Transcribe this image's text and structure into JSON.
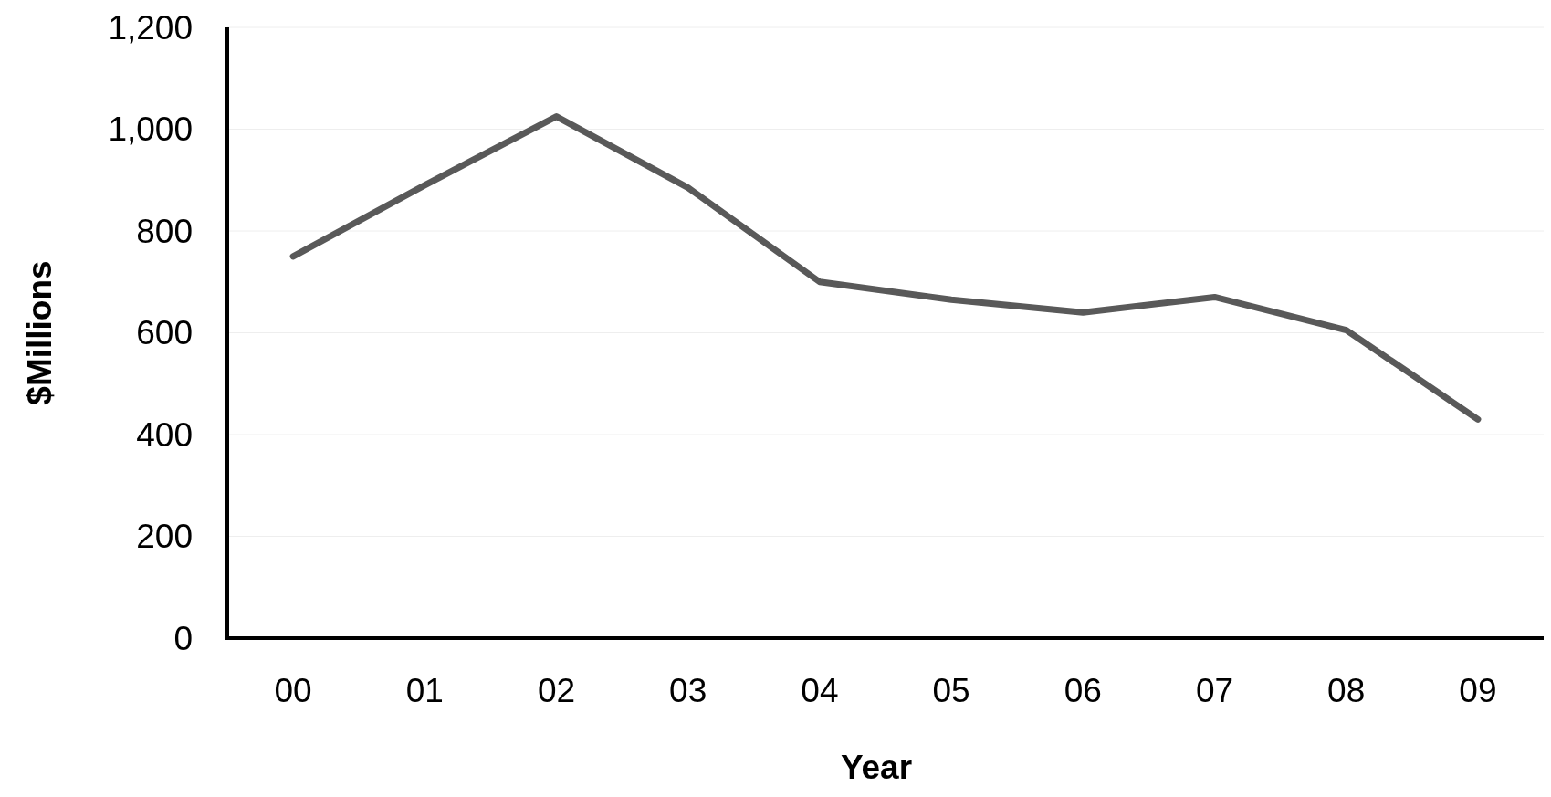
{
  "chart_data": {
    "type": "line",
    "xlabel": "Year",
    "ylabel": "$Millions",
    "categories": [
      "00",
      "01",
      "02",
      "03",
      "04",
      "05",
      "06",
      "07",
      "08",
      "09"
    ],
    "series": [
      {
        "color": "#595959",
        "values": [
          750,
          890,
          1025,
          885,
          700,
          665,
          640,
          670,
          605,
          430
        ]
      }
    ],
    "ylim": [
      0,
      1200
    ],
    "yticks": [
      0,
      {
        "value": 200,
        "label": "200"
      },
      {
        "value": 400,
        "label": "400"
      },
      {
        "value": 600,
        "label": "600"
      },
      {
        "value": 800,
        "label": "800"
      },
      {
        "value": 1000,
        "label": "1,000"
      },
      {
        "value": 1200,
        "label": "1,200"
      }
    ],
    "grid": "y",
    "marker": "none",
    "line_style": "solid"
  }
}
